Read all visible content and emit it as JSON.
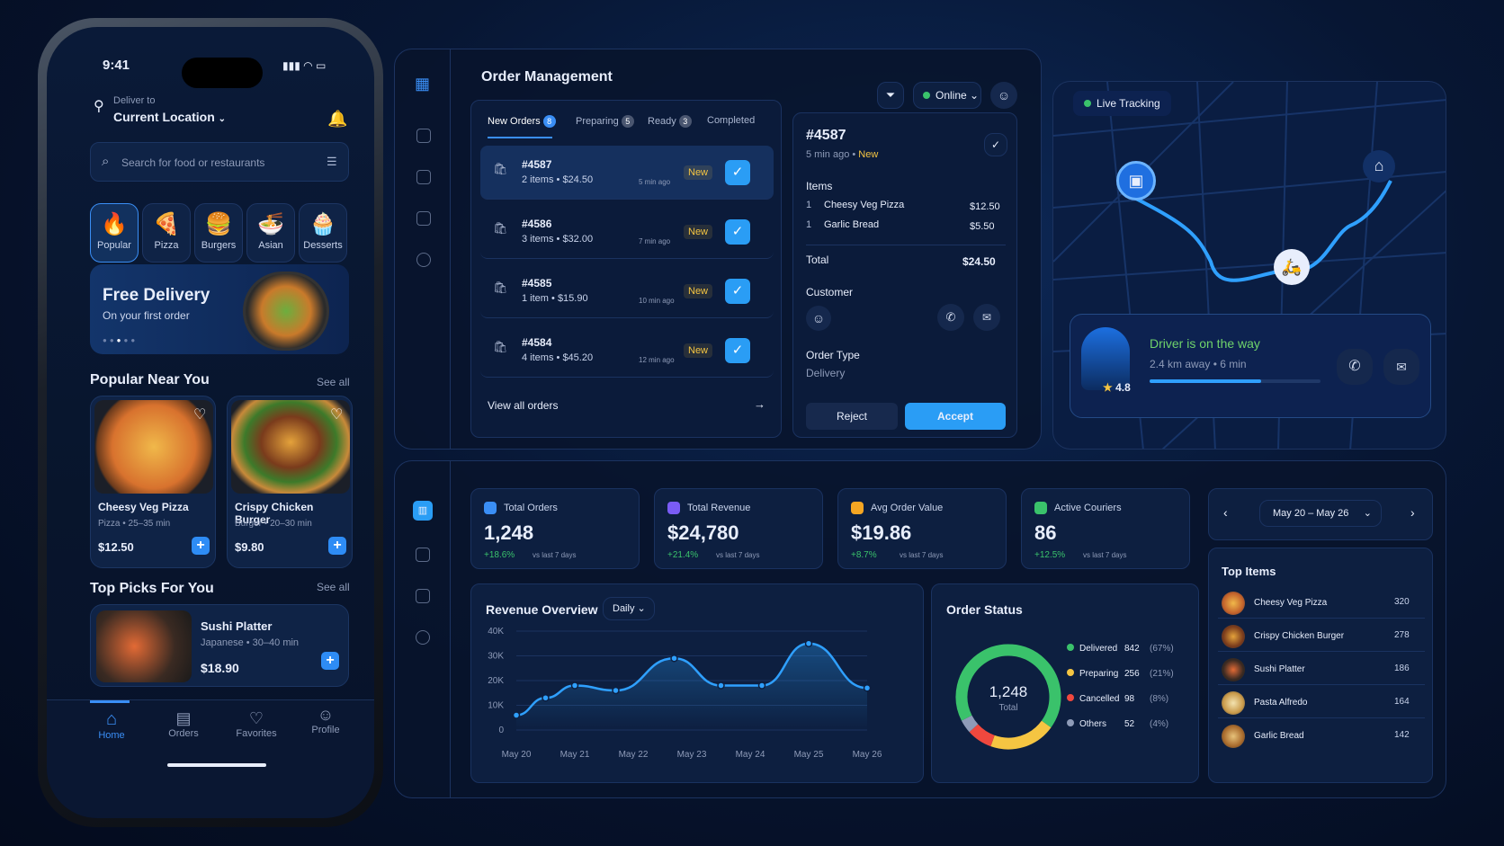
{
  "phone": {
    "time": "9:41",
    "deliver_to": "Deliver to",
    "location": "Current Location",
    "search_placeholder": "Search for food or restaurants",
    "categories": [
      {
        "label": "Popular",
        "emoji": "🔥"
      },
      {
        "label": "Pizza",
        "emoji": "🍕"
      },
      {
        "label": "Burgers",
        "emoji": "🍔"
      },
      {
        "label": "Asian",
        "emoji": "🍜"
      },
      {
        "label": "Desserts",
        "emoji": "🧁"
      }
    ],
    "banner": {
      "title": "Free Delivery",
      "subtitle": "On your first order"
    },
    "popular": {
      "title": "Popular Near You",
      "see_all": "See all",
      "items": [
        {
          "name": "Cheesy Veg Pizza",
          "meta": "Pizza  •  25–35 min",
          "price": "$12.50"
        },
        {
          "name": "Crispy Chicken Burger",
          "meta": "Burger  •  20–30 min",
          "price": "$9.80"
        }
      ]
    },
    "top_picks": {
      "title": "Top Picks For You",
      "see_all": "See all",
      "item": {
        "name": "Sushi Platter",
        "meta": "Japanese  •  30–40 min",
        "price": "$18.90"
      }
    },
    "nav": [
      "Home",
      "Orders",
      "Favorites",
      "Profile"
    ]
  },
  "orders": {
    "title": "Order Management",
    "status": "Online",
    "tabs": [
      {
        "label": "New Orders",
        "count": "8"
      },
      {
        "label": "Preparing",
        "count": "5"
      },
      {
        "label": "Ready",
        "count": "3"
      },
      {
        "label": "Completed",
        "count": ""
      }
    ],
    "list": [
      {
        "id": "#4587",
        "items": "2 items",
        "price": "$24.50",
        "ago": "5 min ago",
        "tag": "New"
      },
      {
        "id": "#4586",
        "items": "3 items",
        "price": "$32.00",
        "ago": "7 min ago",
        "tag": "New"
      },
      {
        "id": "#4585",
        "items": "1 item",
        "price": "$15.90",
        "ago": "10 min ago",
        "tag": "New"
      },
      {
        "id": "#4584",
        "items": "4 items",
        "price": "$45.20",
        "ago": "12 min ago",
        "tag": "New"
      }
    ],
    "view_all": "View all orders",
    "detail": {
      "id": "#4587",
      "ago": "5 min ago",
      "status": "New",
      "items_label": "Items",
      "items": [
        {
          "qty": "1",
          "name": "Cheesy Veg Pizza",
          "price": "$12.50"
        },
        {
          "qty": "1",
          "name": "Garlic Bread",
          "price": "$5.50"
        }
      ],
      "total_label": "Total",
      "total": "$24.50",
      "customer_label": "Customer",
      "type_label": "Order Type",
      "type": "Delivery",
      "reject": "Reject",
      "accept": "Accept"
    }
  },
  "tracking": {
    "label": "Live Tracking",
    "driver_status": "Driver is on the way",
    "distance": "2.4 km away",
    "eta": "6 min",
    "rating": "4.8",
    "progress": 0.65
  },
  "stats": [
    {
      "label": "Total Orders",
      "value": "1,248",
      "delta": "+18.6%",
      "vs": "vs last 7 days",
      "color": "#3a8ef5"
    },
    {
      "label": "Total Revenue",
      "value": "$24,780",
      "delta": "+21.4%",
      "vs": "vs last 7 days",
      "color": "#7a5cf5"
    },
    {
      "label": "Avg Order Value",
      "value": "$19.86",
      "delta": "+8.7%",
      "vs": "vs last 7 days",
      "color": "#f5a623"
    },
    {
      "label": "Active Couriers",
      "value": "86",
      "delta": "+12.5%",
      "vs": "vs last 7 days",
      "color": "#3ac26b"
    }
  ],
  "date_range": "May 20 – May 26",
  "top_items": {
    "title": "Top Items",
    "items": [
      {
        "name": "Cheesy Veg Pizza",
        "count": "320"
      },
      {
        "name": "Crispy Chicken Burger",
        "count": "278"
      },
      {
        "name": "Sushi Platter",
        "count": "186"
      },
      {
        "name": "Pasta Alfredo",
        "count": "164"
      },
      {
        "name": "Garlic Bread",
        "count": "142"
      }
    ]
  },
  "order_status": {
    "title": "Order Status",
    "center_value": "1,248",
    "center_label": "Total"
  },
  "revenue": {
    "title": "Revenue Overview",
    "period": "Daily"
  },
  "chart_data": [
    {
      "type": "line",
      "title": "Revenue Overview",
      "x": [
        "May 20",
        "May 21",
        "May 22",
        "May 23",
        "May 24",
        "May 25",
        "May 26"
      ],
      "yticks": [
        "0",
        "10K",
        "20K",
        "30K",
        "40K"
      ],
      "ylim": [
        0,
        40000
      ],
      "points": [
        {
          "x": 0,
          "y": 6000
        },
        {
          "x": 0.5,
          "y": 13000
        },
        {
          "x": 1,
          "y": 18000
        },
        {
          "x": 1.7,
          "y": 16000
        },
        {
          "x": 2.7,
          "y": 29000
        },
        {
          "x": 3.5,
          "y": 18000
        },
        {
          "x": 4.2,
          "y": 18000
        },
        {
          "x": 5,
          "y": 35000
        },
        {
          "x": 6,
          "y": 17000
        }
      ]
    },
    {
      "type": "pie",
      "title": "Order Status",
      "series": [
        {
          "name": "Delivered",
          "value": 842,
          "pct": "67%",
          "color": "#3ac26b"
        },
        {
          "name": "Preparing",
          "value": 256,
          "pct": "21%",
          "color": "#f5c542"
        },
        {
          "name": "Cancelled",
          "value": 98,
          "pct": "8%",
          "color": "#f0483e"
        },
        {
          "name": "Others",
          "value": 52,
          "pct": "4%",
          "color": "#8e9bb8"
        }
      ]
    }
  ]
}
